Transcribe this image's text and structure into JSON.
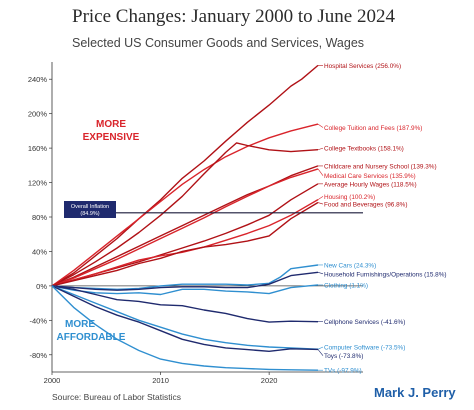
{
  "title": "Price Changes:  January 2000 to June 2024",
  "subtitle": "Selected US Consumer Goods and Services, Wages",
  "source": "Source: Bureau of Labor Statistics",
  "author": "Mark J. Perry",
  "annotations": {
    "more_expensive_1": "MORE",
    "more_expensive_2": "EXPENSIVE",
    "more_affordable_1": "MORE",
    "more_affordable_2": "AFFORDABLE",
    "overall_inflation_1": "Overall Inflation",
    "overall_inflation_2": "(84.9%)"
  },
  "colors": {
    "dark_red": "#b01116",
    "red": "#d9242b",
    "dark_blue": "#1f2a6e",
    "light_blue": "#2f8fd0",
    "inflation_line": "#1a1a3a",
    "label_box": "#1f2a6e"
  },
  "chart_data": {
    "type": "line",
    "title": "Price Changes:  January 2000 to June 2024",
    "subtitle": "Selected US Consumer Goods and Services, Wages",
    "xlabel": "",
    "ylabel": "",
    "xlim": [
      2000,
      2024.5
    ],
    "ylim": [
      -100,
      260
    ],
    "x_ticks": [
      2000,
      2010,
      2020
    ],
    "y_ticks": [
      -80,
      -40,
      0,
      40,
      80,
      120,
      160,
      200,
      240
    ],
    "y_tick_labels": [
      "-80%",
      "-40%",
      "0%",
      "40%",
      "80%",
      "120%",
      "160%",
      "200%",
      "240%"
    ],
    "grid": false,
    "reference_line": {
      "label": "Overall Inflation (84.9%)",
      "value": 84.9
    },
    "series": [
      {
        "name": "Hospital Services (256.0%)",
        "label": "Hospital Services (256.0%)",
        "color": "#b01116",
        "label_value": 256.0,
        "x": [
          2000,
          2002,
          2004,
          2006,
          2008,
          2010,
          2012,
          2014,
          2016,
          2018,
          2020,
          2022,
          2023,
          2024.5
        ],
        "y": [
          0,
          15,
          35,
          55,
          78,
          100,
          125,
          145,
          168,
          190,
          210,
          232,
          240,
          256
        ]
      },
      {
        "name": "College Tuition and Fees (187.9%)",
        "label": "College Tuition and Fees (187.9%)",
        "color": "#d9242b",
        "label_value": 184,
        "x": [
          2000,
          2002,
          2004,
          2006,
          2008,
          2010,
          2012,
          2014,
          2016,
          2018,
          2020,
          2022,
          2024.5
        ],
        "y": [
          0,
          18,
          38,
          58,
          78,
          98,
          118,
          135,
          150,
          162,
          172,
          180,
          187.9
        ]
      },
      {
        "name": "College Textbooks (158.1%)",
        "label": "College Textbooks (158.1%)",
        "color": "#b01116",
        "label_value": 160,
        "x": [
          2000,
          2002,
          2004,
          2006,
          2008,
          2010,
          2012,
          2014,
          2016,
          2017,
          2018,
          2020,
          2022,
          2024.5
        ],
        "y": [
          0,
          13,
          28,
          44,
          62,
          82,
          104,
          130,
          155,
          166,
          163,
          158,
          156,
          158.1
        ]
      },
      {
        "name": "Childcare and Nursery School (139.3%)",
        "label": "Childcare and Nursery School (139.3%)",
        "color": "#b01116",
        "label_value": 139.3,
        "x": [
          2000,
          2002,
          2004,
          2006,
          2008,
          2010,
          2012,
          2014,
          2016,
          2018,
          2020,
          2022,
          2024.5
        ],
        "y": [
          0,
          10,
          22,
          34,
          46,
          58,
          70,
          82,
          94,
          106,
          116,
          128,
          139.3
        ]
      },
      {
        "name": "Medical Care Services (135.9%)",
        "label": "Medical Care Services (135.9%)",
        "color": "#d9242b",
        "label_value": 128,
        "x": [
          2000,
          2002,
          2004,
          2006,
          2008,
          2010,
          2012,
          2014,
          2016,
          2018,
          2020,
          2022,
          2024.5
        ],
        "y": [
          0,
          9,
          20,
          31,
          43,
          55,
          67,
          79,
          92,
          104,
          116,
          126,
          135.9
        ]
      },
      {
        "name": "Average Hourly Wages (118.5%)",
        "label": "Average Hourly Wages (118.5%)",
        "color": "#b01116",
        "label_value": 118.5,
        "x": [
          2000,
          2002,
          2004,
          2006,
          2008,
          2010,
          2012,
          2014,
          2016,
          2018,
          2020,
          2022,
          2024.5
        ],
        "y": [
          0,
          7,
          14,
          21,
          28,
          36,
          44,
          52,
          61,
          71,
          82,
          100,
          118.5
        ]
      },
      {
        "name": "Housing (100.2%)",
        "label": "Housing (100.2%)",
        "color": "#d9242b",
        "label_value": 104,
        "x": [
          2000,
          2002,
          2004,
          2006,
          2008,
          2010,
          2012,
          2014,
          2016,
          2018,
          2020,
          2022,
          2024.5
        ],
        "y": [
          0,
          7,
          14,
          22,
          30,
          35,
          39,
          45,
          53,
          61,
          70,
          82,
          100.2
        ]
      },
      {
        "name": "Food and Beverages (96.8%)",
        "label": "Food and Beverages (96.8%)",
        "color": "#b01116",
        "label_value": 95,
        "x": [
          2000,
          2002,
          2004,
          2006,
          2008,
          2010,
          2012,
          2014,
          2016,
          2018,
          2020,
          2022,
          2024.5
        ],
        "y": [
          0,
          6,
          12,
          18,
          26,
          32,
          40,
          45,
          48,
          52,
          58,
          78,
          96.8
        ]
      },
      {
        "name": "New Cars (24.3%)",
        "label": "New Cars (24.3%)",
        "color": "#2f8fd0",
        "label_value": 24.3,
        "x": [
          2000,
          2002,
          2004,
          2006,
          2008,
          2010,
          2012,
          2014,
          2016,
          2018,
          2020,
          2021,
          2022,
          2024.5
        ],
        "y": [
          0,
          -2,
          -3,
          -4,
          -3,
          0,
          2,
          2,
          2,
          1,
          3,
          10,
          20,
          24.3
        ]
      },
      {
        "name": "Household Furnishings/Operations (15.8%)",
        "label": "Household Furnishings/Operations (15.8%)",
        "color": "#1f2a6e",
        "label_value": 14,
        "x": [
          2000,
          2002,
          2004,
          2006,
          2008,
          2010,
          2012,
          2014,
          2016,
          2018,
          2020,
          2022,
          2024.5
        ],
        "y": [
          0,
          -2,
          -4,
          -5,
          -4,
          -2,
          -1,
          -1,
          -2,
          -2,
          2,
          12,
          15.8
        ]
      },
      {
        "name": "Clothing (1.1%)",
        "label": "Clothing (1.1%)",
        "color": "#2f8fd0",
        "label_value": 1.1,
        "x": [
          2000,
          2002,
          2004,
          2006,
          2008,
          2010,
          2012,
          2014,
          2016,
          2018,
          2020,
          2022,
          2024.5
        ],
        "y": [
          0,
          -5,
          -8,
          -9,
          -8,
          -10,
          -4,
          -4,
          -6,
          -7,
          -9,
          -2,
          1.1
        ]
      },
      {
        "name": "Cellphone Services (-41.6%)",
        "label": "Cellphone Services (-41.6%)",
        "color": "#1f2a6e",
        "label_value": -41.6,
        "x": [
          2000,
          2002,
          2004,
          2006,
          2008,
          2010,
          2012,
          2014,
          2016,
          2018,
          2020,
          2022,
          2024.5
        ],
        "y": [
          0,
          -4,
          -10,
          -16,
          -18,
          -22,
          -23,
          -28,
          -32,
          -38,
          -42,
          -41,
          -41.6
        ]
      },
      {
        "name": "Computer Software (-73.5%)",
        "label": "Computer Software (-73.5%)",
        "color": "#2f8fd0",
        "label_value": -71,
        "x": [
          2000,
          2002,
          2004,
          2006,
          2008,
          2010,
          2012,
          2014,
          2016,
          2018,
          2020,
          2022,
          2024.5
        ],
        "y": [
          0,
          -10,
          -20,
          -30,
          -40,
          -48,
          -56,
          -62,
          -66,
          -69,
          -71,
          -72,
          -73.5
        ]
      },
      {
        "name": "Toys (-73.8%)",
        "label": "Toys (-73.8%)",
        "color": "#1f2a6e",
        "label_value": -81,
        "x": [
          2000,
          2002,
          2004,
          2006,
          2008,
          2010,
          2012,
          2014,
          2016,
          2018,
          2020,
          2022,
          2024.5
        ],
        "y": [
          0,
          -12,
          -24,
          -34,
          -42,
          -52,
          -62,
          -68,
          -72,
          -74,
          -76,
          -73,
          -73.8
        ]
      },
      {
        "name": "TVs (-97.9%)",
        "label": "TVs (-97.9%)",
        "color": "#2f8fd0",
        "label_value": -97.9,
        "x": [
          2000,
          2002,
          2004,
          2006,
          2008,
          2010,
          2012,
          2014,
          2016,
          2018,
          2020,
          2022,
          2024.5
        ],
        "y": [
          0,
          -25,
          -45,
          -62,
          -75,
          -85,
          -90,
          -93,
          -95,
          -96,
          -97,
          -97.5,
          -97.9
        ]
      }
    ]
  }
}
